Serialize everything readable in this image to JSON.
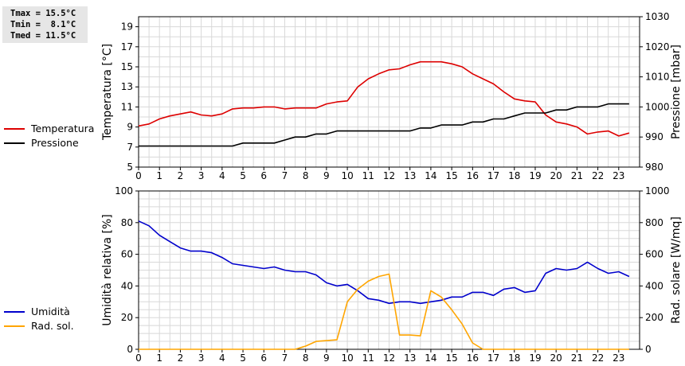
{
  "stats": {
    "tmax": "Tmax = 15.5°C",
    "tmin": "Tmin =  8.1°C",
    "tmed": "Tmed = 11.5°C"
  },
  "legend": {
    "top": [
      {
        "label": "Temperatura",
        "color": "#dd0000"
      },
      {
        "label": "Pressione",
        "color": "#000000"
      }
    ],
    "bottom": [
      {
        "label": "Umidità",
        "color": "#0000cc"
      },
      {
        "label": "Rad. sol.",
        "color": "#ffa500"
      }
    ]
  },
  "chart_data": [
    {
      "type": "line",
      "ylabel": "Temperatura [°C]",
      "y2label": "Pressione [mbar]",
      "xlim": [
        0,
        24
      ],
      "ylim": [
        5,
        20
      ],
      "y2lim": [
        980,
        1030
      ],
      "xticks": [
        "0",
        "1",
        "2",
        "3",
        "4",
        "5",
        "6",
        "7",
        "8",
        "9",
        "10",
        "11",
        "12",
        "13",
        "14",
        "15",
        "16",
        "17",
        "18",
        "19",
        "20",
        "21",
        "22",
        "23"
      ],
      "yticks": [
        5,
        7,
        9,
        11,
        13,
        15,
        17,
        19
      ],
      "y2ticks": [
        980,
        990,
        1000,
        1010,
        1020,
        1030
      ],
      "grid": true,
      "series": [
        {
          "name": "Temperatura",
          "axis": "left",
          "color": "#dd0000",
          "x": [
            0,
            0.5,
            1,
            1.5,
            2,
            2.5,
            3,
            3.5,
            4,
            4.5,
            5,
            5.5,
            6,
            6.5,
            7,
            7.5,
            8,
            8.5,
            9,
            9.5,
            10,
            10.5,
            11,
            11.5,
            12,
            12.5,
            13,
            13.5,
            14,
            14.5,
            15,
            15.5,
            16,
            16.5,
            17,
            17.5,
            18,
            18.5,
            19,
            19.5,
            20,
            20.5,
            21,
            21.5,
            22,
            22.5,
            23,
            23.5
          ],
          "y": [
            9.1,
            9.3,
            9.8,
            10.1,
            10.3,
            10.5,
            10.2,
            10.1,
            10.3,
            10.8,
            10.9,
            10.9,
            11,
            11,
            10.8,
            10.9,
            10.9,
            10.9,
            11.3,
            11.5,
            11.6,
            13,
            13.8,
            14.3,
            14.7,
            14.8,
            15.2,
            15.5,
            15.5,
            15.5,
            15.3,
            15,
            14.3,
            13.8,
            13.3,
            12.5,
            11.8,
            11.6,
            11.5,
            10.2,
            9.5,
            9.3,
            9,
            8.3,
            8.5,
            8.6,
            8.1,
            8.4
          ]
        },
        {
          "name": "Pressione",
          "axis": "right",
          "color": "#000000",
          "x": [
            0,
            0.5,
            1,
            1.5,
            2,
            2.5,
            3,
            3.5,
            4,
            4.5,
            5,
            5.5,
            6,
            6.5,
            7,
            7.5,
            8,
            8.5,
            9,
            9.5,
            10,
            10.5,
            11,
            11.5,
            12,
            12.5,
            13,
            13.5,
            14,
            14.5,
            15,
            15.5,
            16,
            16.5,
            17,
            17.5,
            18,
            18.5,
            19,
            19.5,
            20,
            20.5,
            21,
            21.5,
            22,
            22.5,
            23,
            23.5
          ],
          "y": [
            987,
            987,
            987,
            987,
            987,
            987,
            987,
            987,
            987,
            987,
            988,
            988,
            988,
            988,
            989,
            990,
            990,
            991,
            991,
            992,
            992,
            992,
            992,
            992,
            992,
            992,
            992,
            993,
            993,
            994,
            994,
            994,
            995,
            995,
            996,
            996,
            997,
            998,
            998,
            998,
            999,
            999,
            1000,
            1000,
            1000,
            1001,
            1001,
            1001
          ]
        }
      ]
    },
    {
      "type": "line",
      "ylabel": "Umidità relativa [%]",
      "y2label": "Rad. solare [W/mq]",
      "xlim": [
        0,
        24
      ],
      "ylim": [
        0,
        100
      ],
      "y2lim": [
        0,
        1000
      ],
      "xticks": [
        "0",
        "1",
        "2",
        "3",
        "4",
        "5",
        "6",
        "7",
        "8",
        "9",
        "10",
        "11",
        "12",
        "13",
        "14",
        "15",
        "16",
        "17",
        "18",
        "19",
        "20",
        "21",
        "22",
        "23"
      ],
      "yticks": [
        0,
        20,
        40,
        60,
        80,
        100
      ],
      "y2ticks": [
        0,
        200,
        400,
        600,
        800,
        1000
      ],
      "grid": true,
      "series": [
        {
          "name": "Umidità",
          "axis": "left",
          "color": "#0000cc",
          "x": [
            0,
            0.5,
            1,
            1.5,
            2,
            2.5,
            3,
            3.5,
            4,
            4.5,
            5,
            5.5,
            6,
            6.5,
            7,
            7.5,
            8,
            8.5,
            9,
            9.5,
            10,
            10.5,
            11,
            11.5,
            12,
            12.5,
            13,
            13.5,
            14,
            14.5,
            15,
            15.5,
            16,
            16.5,
            17,
            17.5,
            18,
            18.5,
            19,
            19.5,
            20,
            20.5,
            21,
            21.5,
            22,
            22.5,
            23,
            23.5
          ],
          "y": [
            81,
            78,
            72,
            68,
            64,
            62,
            62,
            61,
            58,
            54,
            53,
            52,
            51,
            52,
            50,
            49,
            49,
            47,
            42,
            40,
            41,
            37,
            32,
            31,
            29,
            30,
            30,
            29,
            30,
            31,
            33,
            33,
            36,
            36,
            34,
            38,
            39,
            36,
            37,
            48,
            51,
            50,
            51,
            55,
            51,
            48,
            49,
            46
          ]
        },
        {
          "name": "Rad. sol.",
          "axis": "right",
          "color": "#ffa500",
          "x": [
            0,
            7.5,
            8,
            8.5,
            9,
            9.5,
            10,
            10.5,
            11,
            11.5,
            12,
            12.5,
            13,
            13.5,
            14,
            14.5,
            15,
            15.5,
            16,
            16.5,
            17,
            23.5
          ],
          "y": [
            0,
            0,
            20,
            50,
            55,
            60,
            300,
            380,
            430,
            460,
            475,
            90,
            90,
            85,
            370,
            330,
            250,
            160,
            40,
            0,
            0,
            0
          ]
        }
      ]
    }
  ]
}
